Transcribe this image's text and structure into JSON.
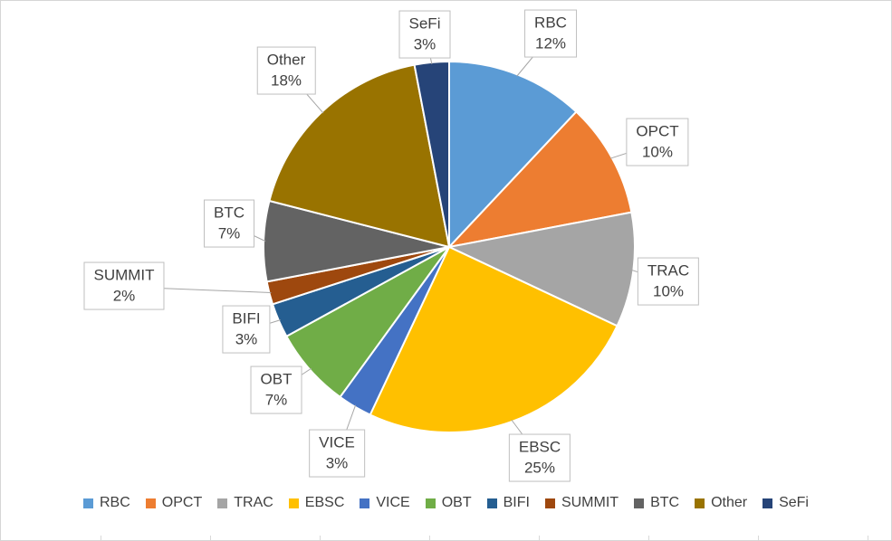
{
  "chart_data": {
    "type": "pie",
    "title": "",
    "categories": [
      "RBC",
      "OPCT",
      "TRAC",
      "EBSC",
      "VICE",
      "OBT",
      "BIFI",
      "SUMMIT",
      "BTC",
      "Other",
      "SeFi"
    ],
    "values": [
      12,
      10,
      10,
      25,
      3,
      7,
      3,
      2,
      7,
      18,
      3
    ],
    "unit": "%",
    "colors": [
      "#5B9BD5",
      "#ED7D31",
      "#A5A5A5",
      "#FFC000",
      "#4472C4",
      "#70AD47",
      "#255E91",
      "#9E480E",
      "#636363",
      "#997300",
      "#264478"
    ],
    "start_angle_deg": 0,
    "direction": "clockwise",
    "legend_position": "bottom",
    "leader_line_color": "#A6A6A6",
    "slice_border_color": "#FFFFFF",
    "labels": [
      {
        "name": "RBC",
        "percent": "12%"
      },
      {
        "name": "OPCT",
        "percent": "10%"
      },
      {
        "name": "TRAC",
        "percent": "10%"
      },
      {
        "name": "EBSC",
        "percent": "25%"
      },
      {
        "name": "VICE",
        "percent": "3%"
      },
      {
        "name": "OBT",
        "percent": "7%"
      },
      {
        "name": "BIFI",
        "percent": "3%"
      },
      {
        "name": "SUMMIT",
        "percent": "2%"
      },
      {
        "name": "BTC",
        "percent": "7%"
      },
      {
        "name": "Other",
        "percent": "18%"
      },
      {
        "name": "SeFi",
        "percent": "3%"
      }
    ]
  }
}
